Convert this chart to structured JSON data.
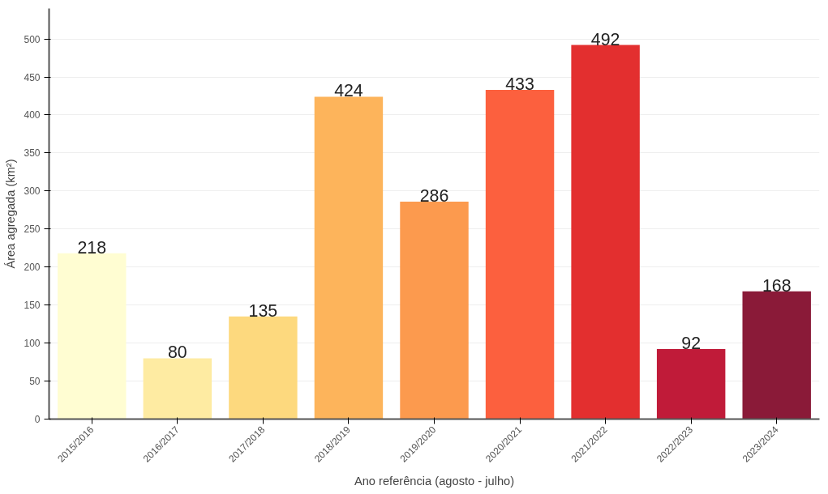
{
  "chart_data": {
    "type": "bar",
    "categories": [
      "2015/2016",
      "2016/2017",
      "2017/2018",
      "2018/2019",
      "2019/2020",
      "2020/2021",
      "2021/2022",
      "2022/2023",
      "2023/2024"
    ],
    "values": [
      218,
      80,
      135,
      424,
      286,
      433,
      492,
      92,
      168
    ],
    "colors": [
      "#fffdd2",
      "#feeba2",
      "#fdd97e",
      "#fdb45b",
      "#fc9a4e",
      "#fc603e",
      "#e32f2f",
      "#c01b39",
      "#8a1a38"
    ],
    "xlabel": "Ano referência (agosto - julho)",
    "ylabel": "Área agregada (km²)",
    "ylim": [
      0,
      540
    ],
    "yticks": [
      0,
      50,
      100,
      150,
      200,
      250,
      300,
      350,
      400,
      450,
      500
    ],
    "grid": "y",
    "data_labels": true
  }
}
